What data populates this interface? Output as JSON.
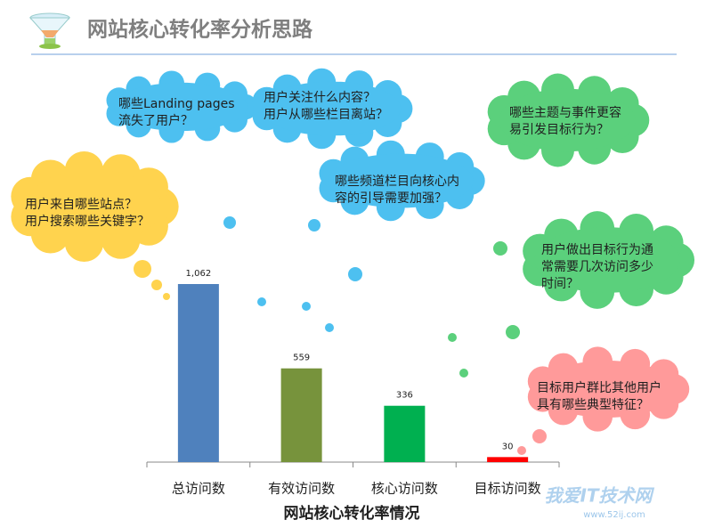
{
  "title": "网站核心转化率分析思路",
  "chart_data": {
    "type": "bar",
    "x_label": "网站核心转化率情况",
    "categories": [
      "总访问数",
      "有效访问数",
      "核心访问数",
      "目标访问数"
    ],
    "values": [
      1062,
      559,
      336,
      30
    ],
    "value_labels": [
      "1,062",
      "559",
      "336",
      "30"
    ],
    "colors": [
      "#4f81bd",
      "#77933c",
      "#00b050",
      "#ff0000"
    ]
  },
  "annotations": [
    {
      "lines": [
        "哪些Landing pages",
        "流失了用户？"
      ],
      "color": "#4dc0f0"
    },
    {
      "lines": [
        "用户关注什么内容？",
        "用户从哪些栏目离站？"
      ],
      "color": "#4dc0f0"
    },
    {
      "lines": [
        "哪些频道栏目向核心内",
        "容的引导需要加强？"
      ],
      "color": "#4dc0f0"
    },
    {
      "lines": [
        "用户来自哪些站点？",
        "用户搜索哪些关键字？"
      ],
      "color": "#ffd34e"
    },
    {
      "lines": [
        "哪些主题与事件更容",
        "易引发目标行为？"
      ],
      "color": "#5bd07c"
    },
    {
      "lines": [
        "用户做出目标行为通",
        "常需要几次访问多少",
        "时间？"
      ],
      "color": "#5bd07c"
    },
    {
      "lines": [
        "目标用户群比其他用户",
        "具有哪些典型特征？"
      ],
      "color": "#ff9a9a"
    }
  ],
  "watermark": {
    "name": "我爱IT技术网",
    "url": "www.52ij.com"
  }
}
